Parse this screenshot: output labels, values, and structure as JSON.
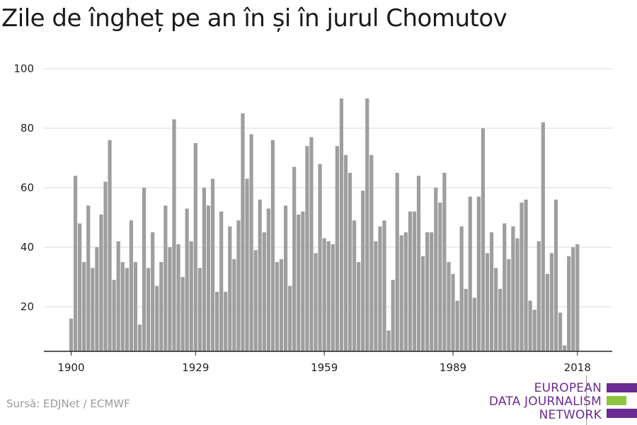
{
  "title": "Zile de îngheț pe an în și în jurul Chomutov",
  "source": "Sursă: EDJNet / ECMWF",
  "logo": {
    "line1": "EUROPEAN",
    "line2": "DATA JOURNALISM",
    "line3": "NETWORK",
    "colors": {
      "purple": "#6a2c91",
      "green": "#8dc63f"
    }
  },
  "chart_data": {
    "type": "bar",
    "title": "Zile de îngheț pe an în și în jurul Chomutov",
    "xlabel": "",
    "ylabel": "",
    "x": [
      1900,
      1901,
      1902,
      1903,
      1904,
      1905,
      1906,
      1907,
      1908,
      1909,
      1910,
      1911,
      1912,
      1913,
      1914,
      1915,
      1916,
      1917,
      1918,
      1919,
      1920,
      1921,
      1922,
      1923,
      1924,
      1925,
      1926,
      1927,
      1928,
      1929,
      1930,
      1931,
      1932,
      1933,
      1934,
      1935,
      1936,
      1937,
      1938,
      1939,
      1940,
      1941,
      1942,
      1943,
      1944,
      1945,
      1946,
      1947,
      1948,
      1949,
      1950,
      1951,
      1952,
      1953,
      1954,
      1955,
      1956,
      1957,
      1958,
      1959,
      1960,
      1961,
      1962,
      1963,
      1964,
      1965,
      1966,
      1967,
      1968,
      1969,
      1970,
      1971,
      1972,
      1973,
      1974,
      1975,
      1976,
      1977,
      1978,
      1979,
      1980,
      1981,
      1982,
      1983,
      1984,
      1985,
      1986,
      1987,
      1988,
      1989,
      1990,
      1991,
      1992,
      1993,
      1994,
      1995,
      1996,
      1997,
      1998,
      1999,
      2000,
      2001,
      2002,
      2003,
      2004,
      2005,
      2006,
      2007,
      2008,
      2009,
      2010,
      2011,
      2012,
      2013,
      2014,
      2015,
      2016,
      2017,
      2018
    ],
    "values": [
      16,
      64,
      48,
      35,
      54,
      33,
      40,
      51,
      62,
      76,
      29,
      42,
      35,
      33,
      49,
      35,
      14,
      60,
      33,
      45,
      27,
      35,
      54,
      40,
      83,
      41,
      30,
      53,
      42,
      75,
      33,
      60,
      54,
      63,
      25,
      52,
      25,
      47,
      36,
      49,
      85,
      63,
      78,
      39,
      56,
      45,
      53,
      76,
      35,
      36,
      54,
      27,
      67,
      51,
      52,
      74,
      77,
      38,
      68,
      43,
      42,
      41,
      74,
      90,
      71,
      65,
      49,
      35,
      59,
      90,
      71,
      42,
      47,
      49,
      12,
      29,
      65,
      44,
      45,
      52,
      52,
      64,
      37,
      45,
      45,
      60,
      55,
      65,
      35,
      31,
      22,
      47,
      26,
      57,
      23,
      57,
      80,
      38,
      45,
      33,
      26,
      48,
      36,
      47,
      43,
      55,
      56,
      22,
      19,
      42,
      82,
      31,
      38,
      56,
      18,
      7,
      37,
      40,
      41
    ],
    "ylim": [
      5,
      100
    ],
    "yticks": [
      20,
      40,
      60,
      80,
      100
    ],
    "xticks": [
      1900,
      1929,
      1959,
      1989,
      2018
    ],
    "grid": true,
    "bar_color": "#9e9e9e"
  }
}
